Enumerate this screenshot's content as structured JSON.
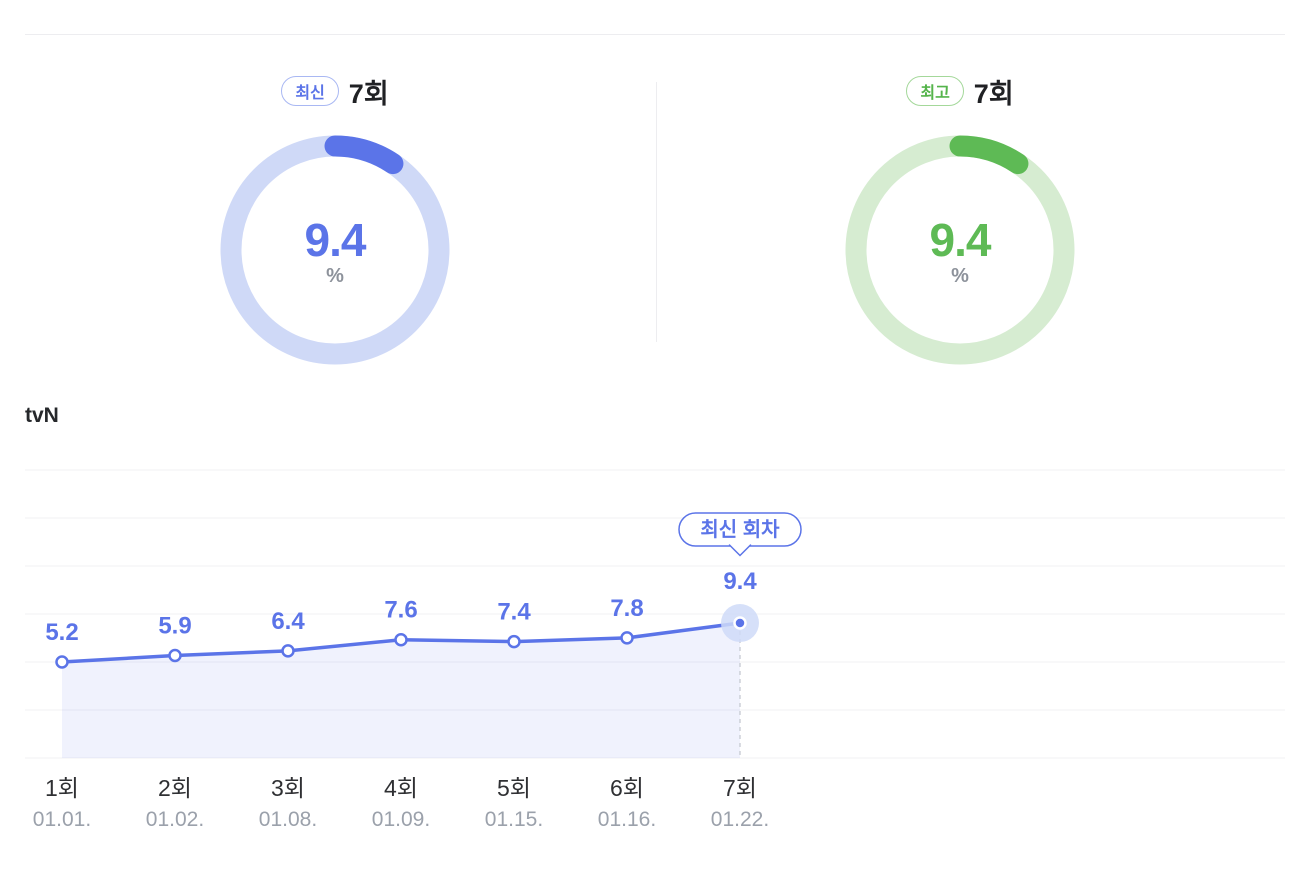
{
  "gauges": {
    "latest": {
      "badge": "최신",
      "episode": "7회",
      "value": 9.4,
      "unit": "%"
    },
    "best": {
      "badge": "최고",
      "episode": "7회",
      "value": 9.4,
      "unit": "%"
    }
  },
  "channel": "tvN",
  "colors": {
    "blue": "#5b74e8",
    "blue_track": "#cfd9f7",
    "blue_halo": "#cfdaf8",
    "green": "#5eba55",
    "green_track": "#d6ecd1",
    "grid": "#f0f0f3",
    "axis_episode": "#2f3033",
    "axis_date": "#9ba1ab",
    "dashed": "#c5c9d2"
  },
  "chart_data": {
    "type": "line",
    "categories": [
      "1회",
      "2회",
      "3회",
      "4회",
      "5회",
      "6회",
      "7회"
    ],
    "category_dates": [
      "01.01.",
      "01.02.",
      "01.08.",
      "01.09.",
      "01.15.",
      "01.16.",
      "01.22."
    ],
    "values": [
      5.2,
      5.9,
      6.4,
      7.6,
      7.4,
      7.8,
      9.4
    ],
    "series_name": "tvN",
    "annotation": "최신 회차",
    "unit": "%",
    "grid": true,
    "legend_position": "none",
    "xlabel": "",
    "ylabel": ""
  }
}
